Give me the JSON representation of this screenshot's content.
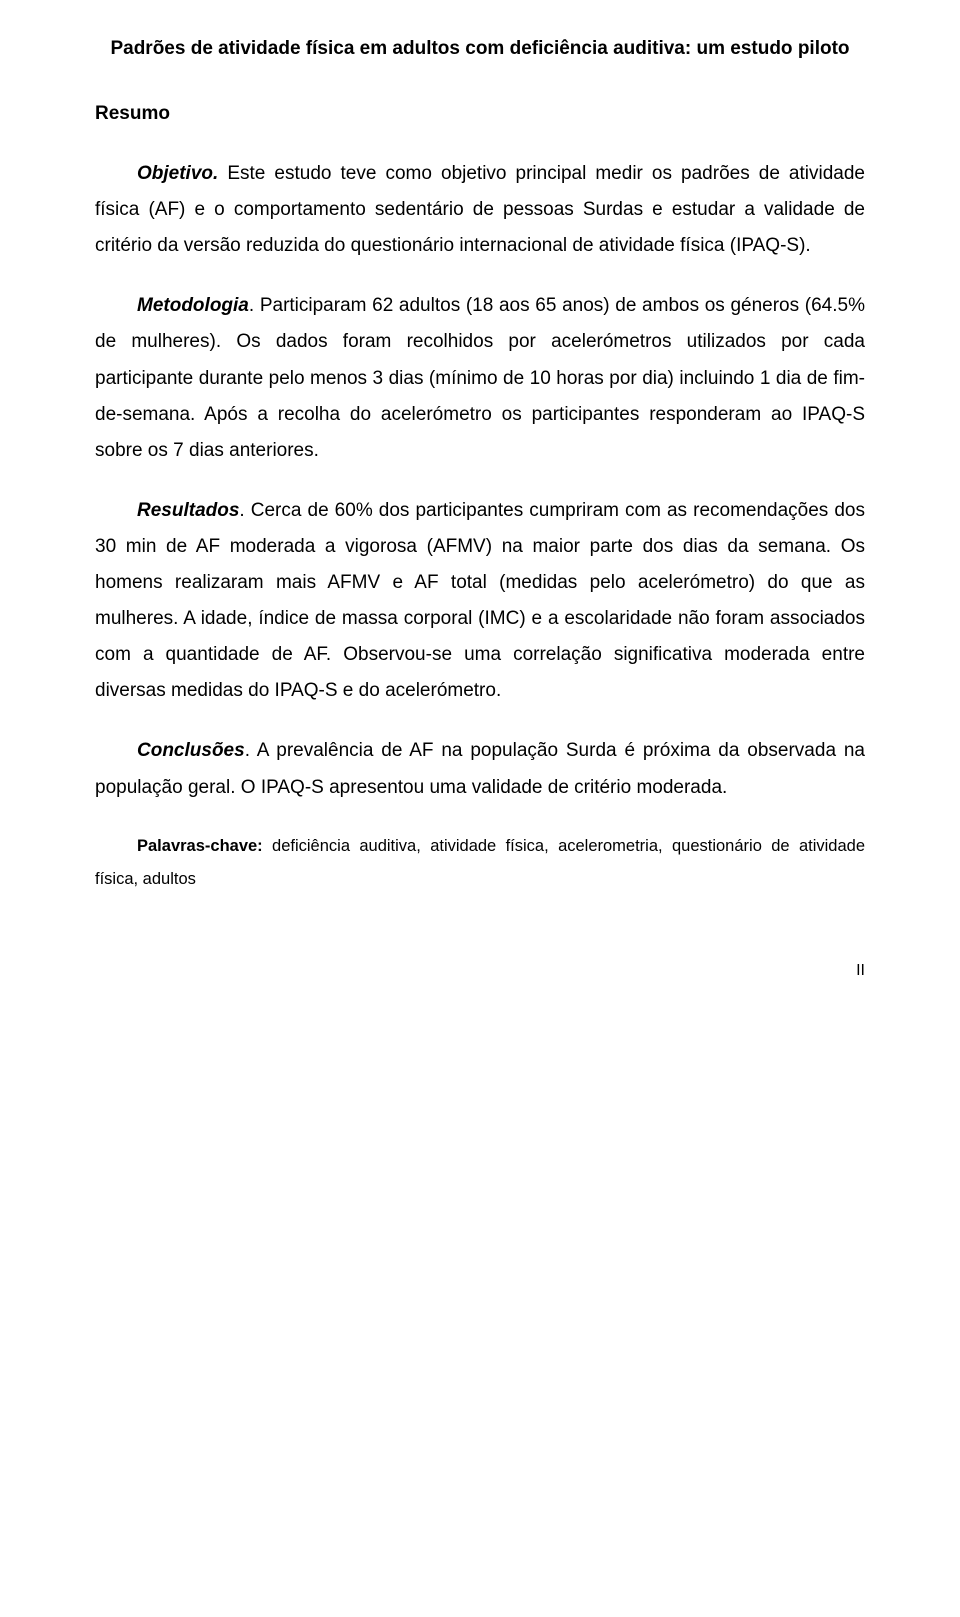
{
  "title": "Padrões de atividade física em adultos com deficiência auditiva: um estudo piloto",
  "resumo_label": "Resumo",
  "objetivo": {
    "heading": "Objetivo.",
    "text": " Este estudo teve como objetivo principal medir os padrões de atividade física (AF) e o comportamento sedentário de pessoas Surdas e estudar a validade de critério da versão reduzida do questionário internacional de atividade física (IPAQ-S)."
  },
  "metodologia": {
    "heading": "Metodologia",
    "text": ". Participaram 62 adultos (18 aos 65 anos) de ambos os géneros (64.5% de mulheres). Os dados foram recolhidos por acelerómetros utilizados por cada participante durante pelo menos 3 dias (mínimo de 10 horas por dia) incluindo 1 dia de fim-de-semana. Após a recolha do acelerómetro os participantes responderam ao IPAQ-S sobre os 7 dias anteriores."
  },
  "resultados": {
    "heading": "Resultados",
    "text": ". Cerca de 60% dos participantes cumpriram com as recomendações dos 30 min de AF moderada a vigorosa (AFMV) na maior parte dos dias da semana. Os homens realizaram mais AFMV e AF total (medidas pelo acelerómetro) do que as mulheres. A idade, índice de massa corporal (IMC) e a escolaridade não foram associados com a quantidade de AF. Observou-se uma correlação significativa moderada entre diversas medidas do IPAQ-S e do acelerómetro."
  },
  "conclusoes": {
    "heading": "Conclusões",
    "text": ". A prevalência de AF na população Surda é próxima da observada na população geral. O IPAQ-S apresentou uma validade de critério moderada."
  },
  "keywords": {
    "label": "Palavras-chave:",
    "text": " deficiência auditiva, atividade física, acelerometria, questionário de atividade física, adultos"
  },
  "page_number": "II"
}
